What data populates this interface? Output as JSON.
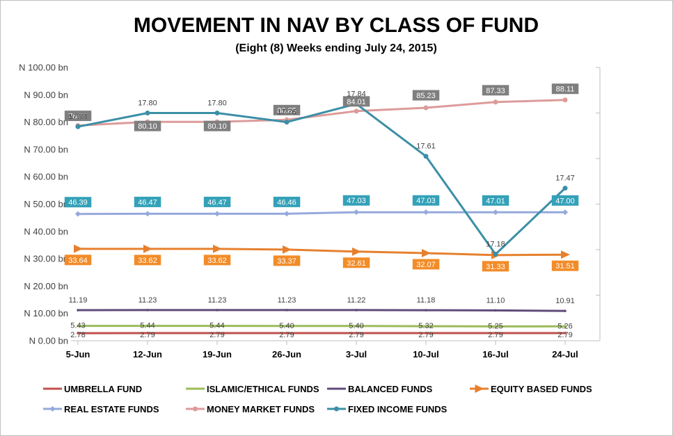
{
  "chart_data": {
    "type": "line",
    "title": "MOVEMENT IN NAV BY CLASS OF FUND",
    "subtitle": "(Eight (8) Weeks ending July 24, 2015)",
    "xlabel": "",
    "ylabel": "",
    "categories": [
      "5-Jun",
      "12-Jun",
      "19-Jun",
      "26-Jun",
      "3-Jul",
      "10-Jul",
      "16-Jul",
      "24-Jul"
    ],
    "y_axis": {
      "min": 0,
      "max": 100,
      "step": 10,
      "tick_labels": [
        "N 0.00 bn",
        "N 10.00 bn",
        "N 20.00 bn",
        "N 30.00 bn",
        "N 40.00 bn",
        "N 50.00 bn",
        "N 60.00 bn",
        "N 70.00 bn",
        "N 80.00 bn",
        "N 90.00 bn",
        "N 100.00 bn"
      ]
    },
    "y2_axis": {
      "min": 16.8,
      "max": 18.0,
      "step": 0.2,
      "tick_labels_shown": false
    },
    "gridlines": false,
    "legend_placement": "bottom",
    "data_labels": true,
    "series": [
      {
        "name": "UMBRELLA FUND",
        "color": "#c0504d",
        "secondary_axis": false,
        "values": [
          2.78,
          2.79,
          2.79,
          2.79,
          2.79,
          2.79,
          2.79,
          2.79
        ]
      },
      {
        "name": "ISLAMIC/ETHICAL FUNDS",
        "color": "#9bbb59",
        "secondary_axis": false,
        "values": [
          5.43,
          5.44,
          5.44,
          5.4,
          5.4,
          5.32,
          5.25,
          5.26
        ]
      },
      {
        "name": "BALANCED FUNDS",
        "color": "#604a7b",
        "secondary_axis": false,
        "values": [
          11.19,
          11.23,
          11.23,
          11.23,
          11.22,
          11.18,
          11.1,
          10.91
        ]
      },
      {
        "name": "EQUITY BASED FUNDS",
        "color": "#e6802e",
        "secondary_axis": false,
        "values": [
          33.64,
          33.62,
          33.62,
          33.37,
          32.61,
          32.07,
          31.33,
          31.51
        ]
      },
      {
        "name": "REAL ESTATE FUNDS",
        "color": "#95a9db",
        "secondary_axis": false,
        "values": [
          46.39,
          46.47,
          46.47,
          46.46,
          47.03,
          47.03,
          47.01,
          47.0
        ]
      },
      {
        "name": "MONEY MARKET FUNDS",
        "color": "#dc9b9a",
        "secondary_axis": false,
        "values": [
          78.74,
          80.1,
          80.1,
          80.85,
          84.01,
          85.23,
          87.33,
          88.11
        ]
      },
      {
        "name": "FIXED INCOME FUNDS",
        "color": "#3b8fa6",
        "secondary_axis": true,
        "values": [
          17.74,
          17.8,
          17.8,
          17.76,
          17.84,
          17.61,
          17.18,
          17.47
        ]
      }
    ]
  }
}
